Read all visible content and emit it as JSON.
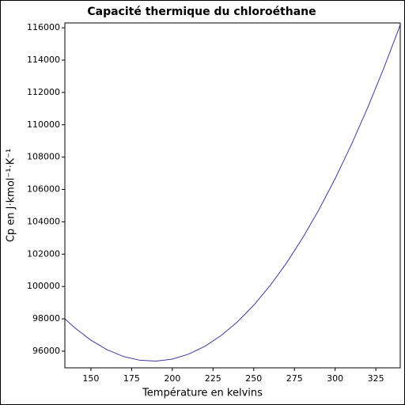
{
  "chart_data": {
    "type": "line",
    "title": "Capacité thermique du chloroéthane",
    "x_label": "Température en kelvins",
    "y_label": "Cp en J·kmol⁻¹·K⁻¹",
    "x": [
      134,
      140,
      150,
      160,
      170,
      180,
      190,
      200,
      210,
      220,
      230,
      240,
      250,
      260,
      270,
      280,
      290,
      300,
      310,
      320,
      330,
      340
    ],
    "series": [
      {
        "name": "Cp",
        "color": "#3a3a9e",
        "values": [
          98004,
          97454,
          96680,
          96086,
          95672,
          95438,
          95384,
          95510,
          95816,
          96302,
          96968,
          97814,
          98840,
          100046,
          101432,
          102998,
          104744,
          106670,
          108776,
          111062,
          113528,
          116174
        ]
      }
    ],
    "xlim": [
      134,
      340
    ],
    "xticks": [
      150,
      175,
      200,
      225,
      250,
      275,
      300,
      325
    ],
    "ylim": [
      94970,
      116300
    ],
    "yticks": [
      96000,
      98000,
      100000,
      102000,
      104000,
      106000,
      108000,
      110000,
      112000,
      114000,
      116000
    ]
  }
}
